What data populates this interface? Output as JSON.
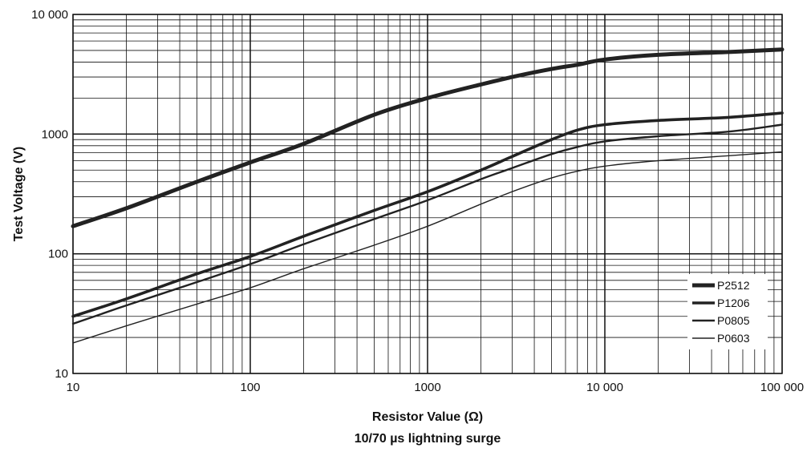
{
  "chart_data": {
    "type": "line",
    "xlabel": "Resistor Value (Ω)",
    "ylabel": "Test Voltage (V)",
    "subtitle": "10/70 µs lightning surge",
    "xscale": "log",
    "yscale": "log",
    "xlim": [
      10,
      100000
    ],
    "ylim": [
      10,
      10000
    ],
    "grid": true,
    "legend_position": "bottom-right",
    "x_ticks": [
      {
        "value": 10,
        "label": "10"
      },
      {
        "value": 100,
        "label": "100"
      },
      {
        "value": 1000,
        "label": "1000"
      },
      {
        "value": 10000,
        "label": "10 000"
      },
      {
        "value": 100000,
        "label": "100 000"
      }
    ],
    "y_ticks": [
      {
        "value": 10,
        "label": "10"
      },
      {
        "value": 100,
        "label": "100"
      },
      {
        "value": 1000,
        "label": "1000"
      },
      {
        "value": 10000,
        "label": "10 000"
      }
    ],
    "series": [
      {
        "name": "P2512",
        "color": "#222222",
        "x": [
          10,
          20,
          50,
          100,
          200,
          500,
          1000,
          2000,
          3000,
          5000,
          7000,
          10000,
          20000,
          50000,
          100000
        ],
        "y": [
          170,
          240,
          400,
          580,
          830,
          1450,
          2000,
          2600,
          3000,
          3500,
          3800,
          4200,
          4600,
          4850,
          5100
        ]
      },
      {
        "name": "P1206",
        "color": "#222222",
        "x": [
          10,
          20,
          50,
          100,
          200,
          500,
          1000,
          2000,
          3000,
          5000,
          7000,
          10000,
          20000,
          50000,
          100000
        ],
        "y": [
          30,
          42,
          68,
          95,
          140,
          230,
          330,
          500,
          650,
          900,
          1080,
          1200,
          1300,
          1380,
          1500
        ]
      },
      {
        "name": "P0805",
        "color": "#222222",
        "x": [
          10,
          20,
          50,
          100,
          200,
          500,
          1000,
          2000,
          3000,
          5000,
          7000,
          10000,
          20000,
          50000,
          100000
        ],
        "y": [
          26,
          37,
          58,
          82,
          120,
          195,
          280,
          420,
          520,
          680,
          780,
          870,
          960,
          1050,
          1200
        ]
      },
      {
        "name": "P0603",
        "color": "#222222",
        "x": [
          10,
          20,
          50,
          100,
          200,
          500,
          1000,
          2000,
          3000,
          5000,
          7000,
          10000,
          20000,
          50000,
          100000
        ],
        "y": [
          18,
          25,
          38,
          52,
          75,
          118,
          170,
          260,
          330,
          430,
          490,
          540,
          600,
          660,
          710
        ]
      }
    ]
  }
}
